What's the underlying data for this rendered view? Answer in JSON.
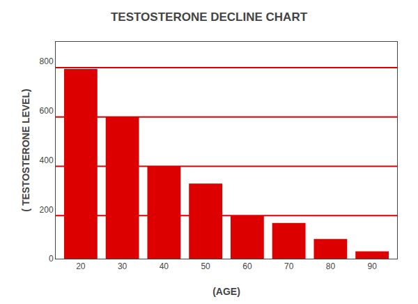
{
  "chart_data": {
    "type": "bar",
    "title": "TESTOSTERONE DECLINE CHART",
    "x_label": "(AGE)",
    "y_label": "( TESTOSTERONE LEVEL)",
    "x": [
      20,
      30,
      40,
      50,
      60,
      70,
      80,
      90
    ],
    "values": [
      770,
      575,
      375,
      305,
      175,
      145,
      80,
      30
    ],
    "color": "#DD0000",
    "hlines": {
      "values": [
        775,
        575,
        375,
        175
      ],
      "color": "#DD0000"
    },
    "xlim": [
      14,
      96
    ],
    "xticks": [
      20,
      30,
      40,
      50,
      60,
      70,
      80,
      90
    ],
    "ylim": [
      0,
      880
    ],
    "yticks": [
      0,
      200,
      400,
      600,
      800
    ],
    "grid": false
  }
}
